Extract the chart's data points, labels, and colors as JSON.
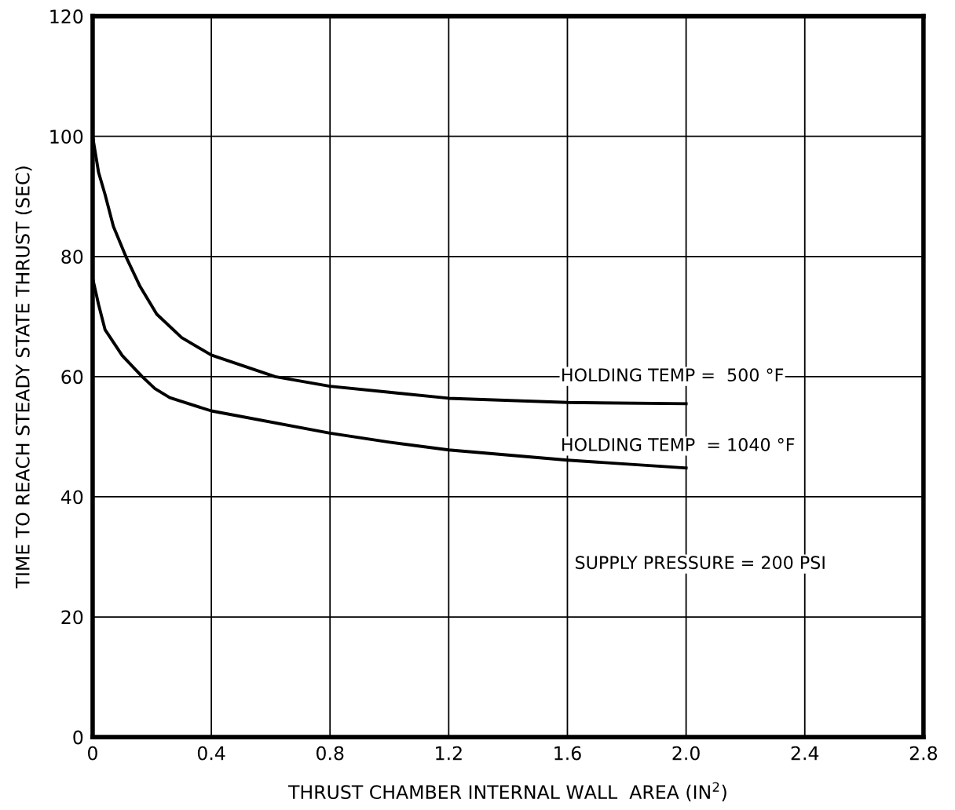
{
  "chart_data": {
    "type": "line",
    "xlabel": "THRUST CHAMBER INTERNAL WALL  AREA (IN$^{2}$)",
    "ylabel": "TIME TO REACH STEADY STATE THRUST (SEC)",
    "series": [
      {
        "name": "HOLDING TEMP =  500 °F",
        "color": "#000000",
        "x": [
          0,
          0.02,
          0.042,
          0.07,
          0.112,
          0.16,
          0.216,
          0.3,
          0.4,
          0.615,
          0.8,
          1.0,
          1.2,
          1.6,
          2.0
        ],
        "values": [
          100,
          94,
          90.3,
          85,
          80,
          75,
          70.4,
          66.5,
          63.6,
          60,
          58.4,
          57.4,
          56.4,
          55.7,
          55.5
        ]
      },
      {
        "name": "HOLDING TEMP  = 1040 °F",
        "color": "#000000",
        "x": [
          0,
          0.02,
          0.042,
          0.1,
          0.167,
          0.21,
          0.26,
          0.4,
          0.8,
          1.0,
          1.2,
          1.6,
          2.0
        ],
        "values": [
          76.4,
          72,
          67.8,
          63.5,
          60,
          58,
          56.5,
          54.3,
          50.6,
          49.1,
          47.8,
          46.1,
          44.8
        ]
      }
    ],
    "annotations": [
      "SUPPLY PRESSURE = 200 PSI"
    ],
    "xlim": [
      0,
      2.8
    ],
    "ylim": [
      0,
      120
    ],
    "xticks": [
      0,
      0.4,
      0.8,
      1.2,
      1.6,
      {
        "value": 2.0,
        "label": "2.0"
      },
      2.4,
      2.8
    ],
    "yticks": [
      0,
      20,
      40,
      60,
      80,
      100,
      120
    ],
    "grid": true,
    "marker": "none",
    "line_style": "solid"
  }
}
